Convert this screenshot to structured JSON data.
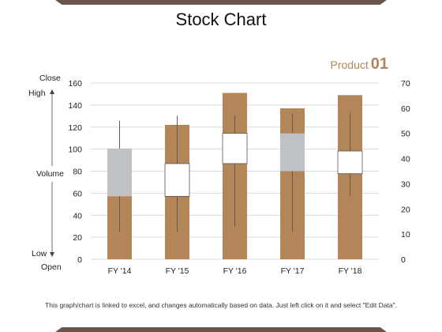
{
  "title": "Stock Chart",
  "product": {
    "label": "Product",
    "number": "01"
  },
  "footnote": "This graph/chart is linked to excel, and changes automatically based on data. Just left click on it and select \"Edit Data\".",
  "chart_data": {
    "type": "bar",
    "categories": [
      "FY '14",
      "FY '15",
      "FY '16",
      "FY '17",
      "FY '18"
    ],
    "volume_axis": {
      "ylim": [
        0,
        160
      ],
      "ticks": [
        0,
        20,
        40,
        60,
        80,
        100,
        120,
        140,
        160
      ]
    },
    "price_axis": {
      "ylim": [
        0,
        70
      ],
      "ticks": [
        0,
        10,
        20,
        30,
        40,
        50,
        60,
        70
      ]
    },
    "side_labels": {
      "close": "Close",
      "high": "High",
      "volume": "Volume",
      "low": "Low",
      "open": "Open"
    },
    "volume": [
      100,
      122,
      151,
      137,
      149
    ],
    "high": [
      55,
      57,
      57,
      58,
      58
    ],
    "low": [
      11,
      11,
      13,
      11,
      25
    ],
    "open": [
      25,
      25,
      38,
      35,
      34
    ],
    "close": [
      44,
      38,
      50,
      50,
      43
    ],
    "colors": {
      "volume": "#b3865a",
      "down_box": "#bfc2c4",
      "up_box": "#ffffff",
      "wick": "#6b5548",
      "grid": "#d9d9d9"
    }
  }
}
